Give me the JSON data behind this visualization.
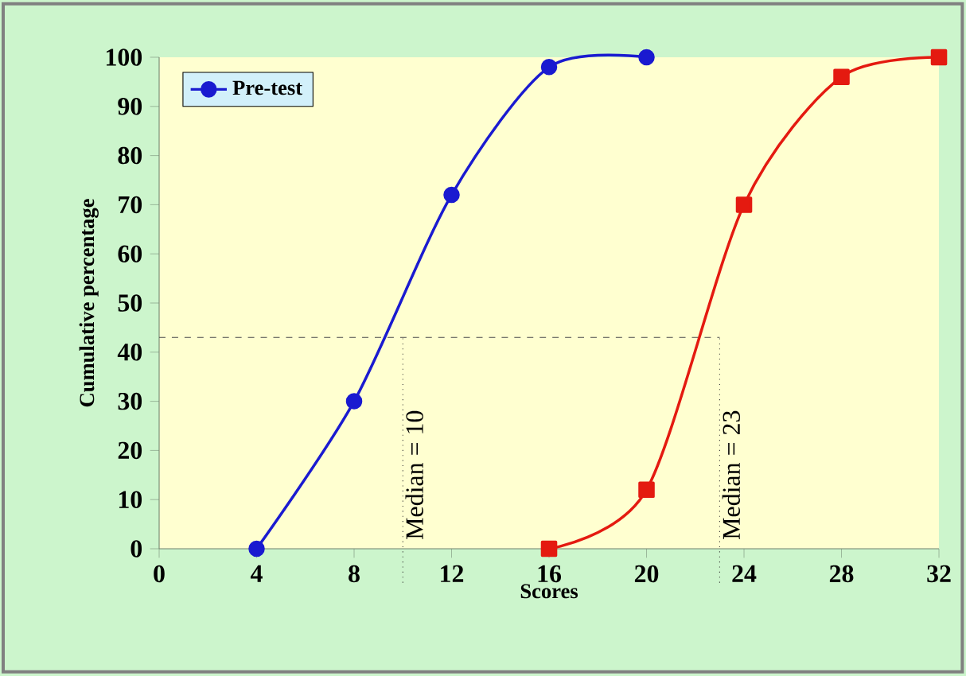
{
  "chart_data": {
    "type": "line",
    "xlabel": "Scores",
    "ylabel": "Cumulative percentage",
    "xlim": [
      0,
      32
    ],
    "xticks": [
      0,
      4,
      8,
      12,
      16,
      20,
      24,
      28,
      32
    ],
    "ylim": [
      0,
      100
    ],
    "yticks": [
      0,
      10,
      20,
      30,
      40,
      50,
      60,
      70,
      80,
      90,
      100
    ],
    "series": [
      {
        "name": "Pre-test",
        "color": "#1a1ad0",
        "marker": "circle",
        "x": [
          4,
          8,
          12,
          16,
          20
        ],
        "values": [
          0,
          30,
          72,
          98,
          100
        ]
      },
      {
        "color": "#e41a10",
        "marker": "square",
        "x": [
          16,
          20,
          24,
          28,
          32
        ],
        "values": [
          0,
          12,
          70,
          96,
          100
        ]
      }
    ],
    "ref_lines": [
      {
        "axis": "y",
        "value": 43,
        "line_style": "dashed"
      },
      {
        "axis": "x",
        "value": 10,
        "label": "Median = 10",
        "line_style": "dotted"
      },
      {
        "axis": "x",
        "value": 23,
        "label": "Median = 23",
        "line_style": "dotted"
      }
    ],
    "legend": "top left",
    "grid": false
  }
}
